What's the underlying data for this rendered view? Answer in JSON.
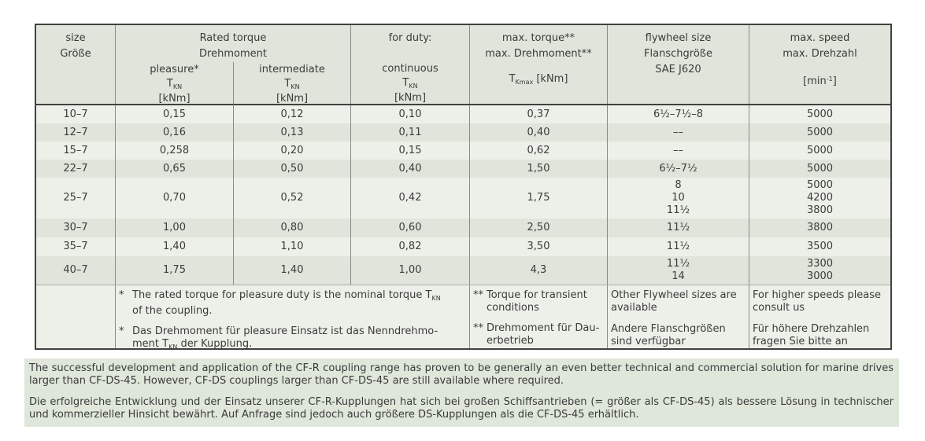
{
  "colors": {
    "band_light": "#edf0e9",
    "band_dark": "#dfe5da",
    "note_background": "#dfe6da",
    "border_dark": "#414141",
    "grid_line": "#8a8a8a",
    "text": "#3b3b3b"
  },
  "table": {
    "header": {
      "size_l1": "size",
      "size_l2": "Größe",
      "rated_l1": "Rated torque",
      "rated_l2": "Drehmoment",
      "pleasure": "pleasure*",
      "intermediate": "intermediate",
      "for_duty": "for duty:",
      "continuous": "continuous",
      "t": "T",
      "t_sub": "KN",
      "unit_knm": "[kNm]",
      "maxtorque_l1": "max. torque**",
      "maxtorque_l2": "max. Drehmoment**",
      "tkmax_sub": "Kmax",
      "tkmax_unit": " [kNm]",
      "flywheel_l1": "flywheel size",
      "flywheel_l2": "Flanschgröße",
      "flywheel_l3": "SAE J620",
      "speed_l1": "max. speed",
      "speed_l2": "max. Drehzahl",
      "speed_unit_pre": "[min",
      "speed_unit_sup": "-1",
      "speed_unit_post": "]"
    },
    "rows": [
      {
        "size": "10–7",
        "pleasure": "0,15",
        "intermediate": "0,12",
        "continuous": "0,10",
        "max_torque": "0,37",
        "flywheel": [
          "6½–7½–8"
        ],
        "speed": [
          "5000"
        ]
      },
      {
        "size": "12–7",
        "pleasure": "0,16",
        "intermediate": "0,13",
        "continuous": "0,11",
        "max_torque": "0,40",
        "flywheel": [
          "––"
        ],
        "speed": [
          "5000"
        ]
      },
      {
        "size": "15–7",
        "pleasure": "0,258",
        "intermediate": "0,20",
        "continuous": "0,15",
        "max_torque": "0,62",
        "flywheel": [
          "––"
        ],
        "speed": [
          "5000"
        ]
      },
      {
        "size": "22–7",
        "pleasure": "0,65",
        "intermediate": "0,50",
        "continuous": "0,40",
        "max_torque": "1,50",
        "flywheel": [
          "6½–7½"
        ],
        "speed": [
          "5000"
        ]
      },
      {
        "size": "25–7",
        "pleasure": "0,70",
        "intermediate": "0,52",
        "continuous": "0,42",
        "max_torque": "1,75",
        "flywheel": [
          "8",
          "10",
          "11½"
        ],
        "speed": [
          "5000",
          "4200",
          "3800"
        ]
      },
      {
        "size": "30–7",
        "pleasure": "1,00",
        "intermediate": "0,80",
        "continuous": "0,60",
        "max_torque": "2,50",
        "flywheel": [
          "11½"
        ],
        "speed": [
          "3800"
        ]
      },
      {
        "size": "35–7",
        "pleasure": "1,40",
        "intermediate": "1,10",
        "continuous": "0,82",
        "max_torque": "3,50",
        "flywheel": [
          "11½"
        ],
        "speed": [
          "3500"
        ]
      },
      {
        "size": "40–7",
        "pleasure": "1,75",
        "intermediate": "1,40",
        "continuous": "1,00",
        "max_torque": "4,3",
        "flywheel": [
          "11½",
          "14"
        ],
        "speed": [
          "3300",
          "3000"
        ]
      }
    ],
    "footnotes": {
      "rated": {
        "marker": "*",
        "en_l1": "The rated torque for pleasure duty is the nominal torque T",
        "en_sub": "KN",
        "en_l2": "of the coupling.",
        "de_l1": "Das Drehmoment für pleasure Einsatz ist das Nenndrehmo-",
        "de_l2a": "ment T",
        "de_sub": "KN",
        "de_l2b": " der Kupplung."
      },
      "transient": {
        "marker": "**",
        "en_l1": "Torque for transient",
        "en_l2": "conditions",
        "de_l1": "Drehmoment für Dau-",
        "de_l2": "erbetrieb"
      },
      "flywheel": {
        "en_l1": "Other Flywheel sizes are",
        "en_l2": "available",
        "de_l1": "Andere Flanschgrößen",
        "de_l2": "sind verfügbar"
      },
      "speed": {
        "en_l1": "For higher speeds please",
        "en_l2": "consult us",
        "de_l1": "Für höhere Drehzahlen",
        "de_l2": "fragen Sie bitte an"
      }
    }
  },
  "note": {
    "en": "The successful development and application of the CF-R coupling range has proven to be generally an even better technical and commercial solution for marine drives larger than CF-DS-45. However, CF-DS couplings larger than CF-DS-45 are still available where required.",
    "de": "Die erfolgreiche Entwicklung und der Einsatz unserer CF-R-Kupplungen hat sich bei großen Schiffsantrieben (= größer als CF-DS-45) als bessere Lösung in technischer und kommerzieller Hinsicht bewährt. Auf Anfrage sind jedoch auch größere DS-Kupplungen als die CF-DS-45 erhältlich."
  }
}
